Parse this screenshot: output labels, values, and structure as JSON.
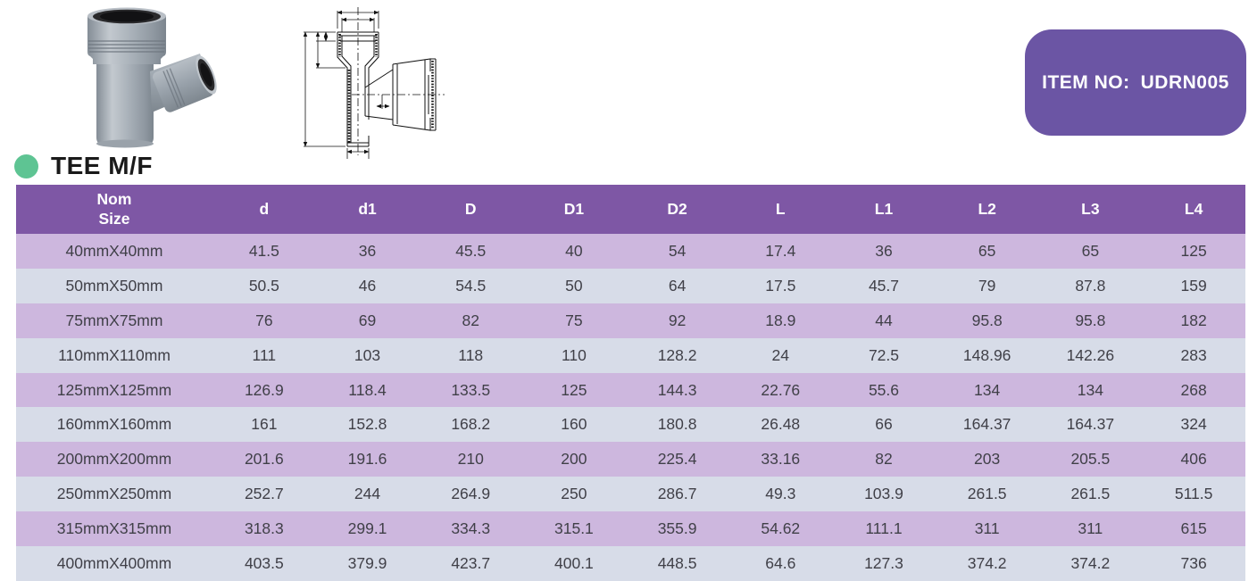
{
  "page": {
    "title": "TEE M/F",
    "item_no_label": "ITEM NO:",
    "item_no_value": "UDRN005"
  },
  "colors": {
    "header_purple": "#7e57a5",
    "badge_purple": "#6b55a4",
    "row_pink": "#cdb7de",
    "row_blue_gray": "#d7dce8",
    "bullet_green": "#5ec493",
    "fitting_gray": "#a8b0b8"
  },
  "icons": {
    "bullet": "category-bullet-icon"
  },
  "table": {
    "header": {
      "col0_line1": "Nom",
      "col0_line2": "Size",
      "columns": [
        "d",
        "d1",
        "D",
        "D1",
        "D2",
        "L",
        "L1",
        "L2",
        "L3",
        "L4"
      ]
    },
    "rows": [
      {
        "size": "40mmX40mm",
        "values": [
          "41.5",
          "36",
          "45.5",
          "40",
          "54",
          "17.4",
          "36",
          "65",
          "65",
          "125"
        ]
      },
      {
        "size": "50mmX50mm",
        "values": [
          "50.5",
          "46",
          "54.5",
          "50",
          "64",
          "17.5",
          "45.7",
          "79",
          "87.8",
          "159"
        ]
      },
      {
        "size": "75mmX75mm",
        "values": [
          "76",
          "69",
          "82",
          "75",
          "92",
          "18.9",
          "44",
          "95.8",
          "95.8",
          "182"
        ]
      },
      {
        "size": "110mmX110mm",
        "values": [
          "111",
          "103",
          "118",
          "110",
          "128.2",
          "24",
          "72.5",
          "148.96",
          "142.26",
          "283"
        ]
      },
      {
        "size": "125mmX125mm",
        "values": [
          "126.9",
          "118.4",
          "133.5",
          "125",
          "144.3",
          "22.76",
          "55.6",
          "134",
          "134",
          "268"
        ]
      },
      {
        "size": "160mmX160mm",
        "values": [
          "161",
          "152.8",
          "168.2",
          "160",
          "180.8",
          "26.48",
          "66",
          "164.37",
          "164.37",
          "324"
        ]
      },
      {
        "size": "200mmX200mm",
        "values": [
          "201.6",
          "191.6",
          "210",
          "200",
          "225.4",
          "33.16",
          "82",
          "203",
          "205.5",
          "406"
        ]
      },
      {
        "size": "250mmX250mm",
        "values": [
          "252.7",
          "244",
          "264.9",
          "250",
          "286.7",
          "49.3",
          "103.9",
          "261.5",
          "261.5",
          "511.5"
        ]
      },
      {
        "size": "315mmX315mm",
        "values": [
          "318.3",
          "299.1",
          "334.3",
          "315.1",
          "355.9",
          "54.62",
          "111.1",
          "311",
          "311",
          "615"
        ]
      },
      {
        "size": "400mmX400mm",
        "values": [
          "403.5",
          "379.9",
          "423.7",
          "400.1",
          "448.5",
          "64.6",
          "127.3",
          "374.2",
          "374.2",
          "736"
        ]
      }
    ]
  }
}
